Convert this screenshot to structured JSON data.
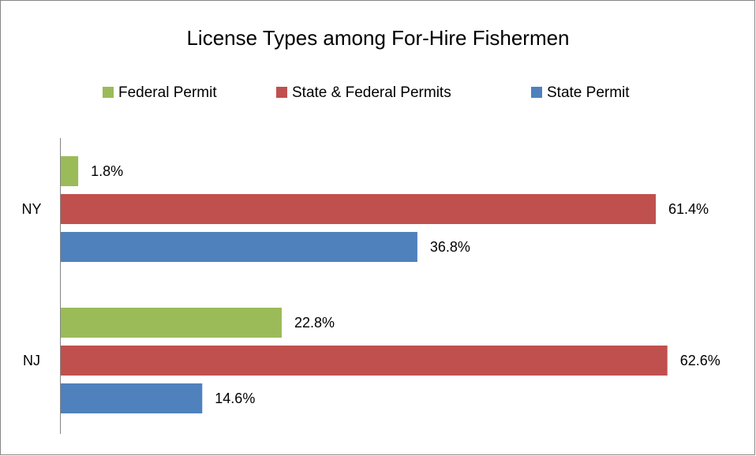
{
  "chart_data": {
    "type": "bar",
    "orientation": "horizontal",
    "title": "License Types among For-Hire Fishermen",
    "categories": [
      "NY",
      "NJ"
    ],
    "series": [
      {
        "name": "Federal Permit",
        "color": "#9bbb59",
        "values": [
          1.8,
          22.8
        ],
        "value_labels": [
          "1.8%",
          "22.8%"
        ]
      },
      {
        "name": "State & Federal Permits",
        "color": "#c0504d",
        "values": [
          61.4,
          62.6
        ],
        "value_labels": [
          "61.4%",
          "62.6%"
        ]
      },
      {
        "name": "State Permit",
        "color": "#4f81bd",
        "values": [
          36.8,
          14.6
        ],
        "value_labels": [
          "36.8%",
          "14.6%"
        ]
      }
    ],
    "legend": "top"
  }
}
